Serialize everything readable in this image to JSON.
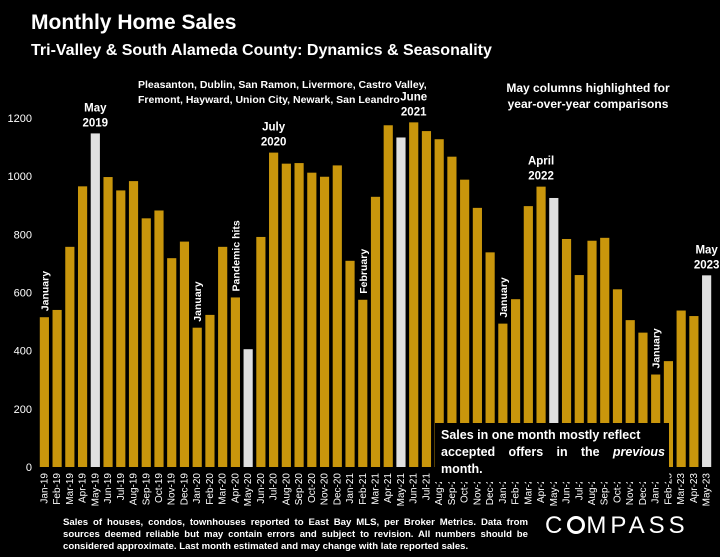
{
  "header": {
    "title": "Monthly Home Sales",
    "subtitle": "Tri-Valley & South Alameda County: Dynamics & Seasonality",
    "region_line1": "Pleasanton, Dublin, San Ramon, Livermore, Castro Valley,",
    "region_line2": "Fremont, Hayward, Union City, Newark, San Leandro",
    "highlight_note_line1": "May columns highlighted for",
    "highlight_note_line2": "year-over-year comparisons"
  },
  "note_box": {
    "line1": "Sales in one month mostly reflect",
    "line2_before": "accepted offers in the ",
    "line2_emph": "previous",
    "line2_after": " month."
  },
  "footnote": "Sales of houses, condos, townhouses reported to East Bay MLS, per Broker Metrics. Data from sources deemed reliable but may contain errors and subject to revision. All numbers should be considered approximate. Last month estimated and may change with late reported sales.",
  "logo": "COMPASS",
  "colors": {
    "bar": "#c9960c",
    "highlight": "#e0e0e0",
    "background": "#000000"
  },
  "chart_data": {
    "type": "bar",
    "ylim": [
      0,
      1200
    ],
    "yticks": [
      0,
      200,
      400,
      600,
      800,
      1000,
      1200
    ],
    "grid": false,
    "categories": [
      "Jan-19",
      "Feb-19",
      "Mar-19",
      "Apr-19",
      "May-19",
      "Jun-19",
      "Jul-19",
      "Aug-19",
      "Sep-19",
      "Oct-19",
      "Nov-19",
      "Dec-19",
      "Jan-20",
      "Feb-20",
      "Mar-20",
      "Apr-20",
      "May-20",
      "Jun-20",
      "Jul-20",
      "Aug-20",
      "Sep-20",
      "Oct-20",
      "Nov-20",
      "Dec-20",
      "Jan-21",
      "Feb-21",
      "Mar-21",
      "Apr-21",
      "May-21",
      "Jun-21",
      "Jul-21",
      "Aug-21",
      "Sep-21",
      "Oct-21",
      "Nov-21",
      "Dec-21",
      "Jan-22",
      "Feb-22",
      "Mar-22",
      "Apr-22",
      "May-22",
      "Jun-22",
      "Jul-22",
      "Aug-22",
      "Sep-22",
      "Oct-22",
      "Nov-22",
      "Dec-22",
      "Jan-23",
      "Feb-23",
      "Mar-23",
      "Apr-23",
      "May-23"
    ],
    "tick_labels": [
      "Jan-19",
      "Mar-19",
      "May-19",
      "Jul-19",
      "Sep-19",
      "Nov-19",
      "Jan-20",
      "Mar-20",
      "May-20",
      "Jul-20",
      "Sep-20",
      "Nov-20",
      "Jan-21",
      "Mar-21",
      "May-21",
      "Jul-21",
      "Sep-21",
      "Nov-21",
      "Jan-22",
      "Mar-22",
      "May-22",
      "Jul-22",
      "Sep-22",
      "Nov-22",
      "Jan-23",
      "Mar-23",
      "May-23",
      "Feb-19",
      "Apr-19",
      "Jun-19",
      "Aug-19",
      "Oct-19",
      "Dec-19",
      "Feb-20",
      "Apr-20",
      "Jun-20",
      "Aug-20",
      "Oct-20",
      "Dec-20",
      "Feb-21",
      "Apr-21",
      "Jun-21",
      "Aug-21",
      "Oct-21",
      "Dec-21",
      "Feb-22",
      "Apr-22",
      "Jun-22",
      "Aug-22",
      "Oct-22",
      "Dec-22",
      "Feb-23",
      "Apr-23"
    ],
    "values": [
      515,
      540,
      757,
      965,
      1147,
      997,
      951,
      983,
      855,
      882,
      718,
      775,
      479,
      523,
      757,
      583,
      405,
      791,
      1081,
      1043,
      1045,
      1012,
      998,
      1037,
      709,
      575,
      929,
      1175,
      1133,
      1185,
      1155,
      1127,
      1067,
      988,
      891,
      738,
      493,
      577,
      897,
      964,
      925,
      784,
      660,
      778,
      788,
      611,
      505,
      462,
      318,
      364,
      538,
      519,
      659
    ],
    "highlighted": [
      "May-19",
      "May-20",
      "May-21",
      "May-22",
      "May-23"
    ],
    "annotations": [
      {
        "text": "January",
        "category": "Jan-19",
        "rotated": true
      },
      {
        "text": "May",
        "category": "May-19",
        "text2": "2019",
        "rotated": false
      },
      {
        "text": "January",
        "category": "Jan-20",
        "rotated": true
      },
      {
        "text": "Pandemic hits",
        "category": "Apr-20",
        "rotated": true
      },
      {
        "text": "July",
        "category": "Jul-20",
        "text2": "2020",
        "rotated": false
      },
      {
        "text": "February",
        "category": "Feb-21",
        "rotated": true
      },
      {
        "text": "June",
        "category": "Jun-21",
        "text2": "2021",
        "rotated": false
      },
      {
        "text": "January",
        "category": "Jan-22",
        "rotated": true
      },
      {
        "text": "April",
        "category": "Apr-22",
        "text2": "2022",
        "rotated": false
      },
      {
        "text": "January",
        "category": "Jan-23",
        "rotated": true
      },
      {
        "text": "May",
        "category": "May-23",
        "text2": "2023",
        "rotated": false
      }
    ]
  }
}
